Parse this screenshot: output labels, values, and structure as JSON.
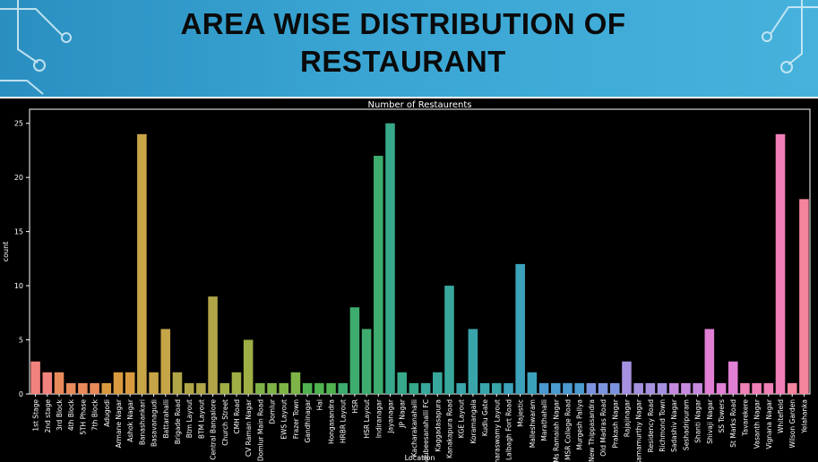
{
  "slide": {
    "title": "AREA WISE DISTRIBUTION OF RESTAURANT"
  },
  "theme": {
    "banner_color": "#3aa5d3",
    "chart_background": "#000000",
    "title_color": "#0a0a0a"
  },
  "chart_data": {
    "type": "bar",
    "title": "Number of Restaurents",
    "xlabel": "Location",
    "ylabel": "count",
    "ylim": [
      0,
      26.3
    ],
    "yticks": [
      0,
      5,
      10,
      15,
      20,
      25
    ],
    "grid": false,
    "categories": [
      "1st Stage",
      "2nd stage",
      "3rd Block",
      "4th Block",
      "5TH Phase",
      "7th Block",
      "Adugodi",
      "Armane Nagar",
      "Ashok Nagar",
      "Banashankari",
      "Basavanagudi",
      "Battarahalli",
      "Brigade Road",
      "Btm Layout",
      "BTM Layout",
      "Central Bangalore",
      "Church Street",
      "CMH Road",
      "CV Raman Nagar",
      "Domlur Main Road",
      "Domlur",
      "EWS Layout",
      "Frazer Town",
      "Gandhinagar",
      "Hal",
      "Hongasandra",
      "HRBR Layout",
      "HSR",
      "HSR Layout",
      "Indiranagar",
      "Jayanagar",
      "JP Nagar",
      "Kacharakanahalli",
      "Kadubeesanahalli FC",
      "Kaggadasapura",
      "Kanakapura Road",
      "KGE Layout",
      "Koramangala",
      "Kudlu Gate",
      "Kumaraswamy Layout",
      "Lalbagh Fort Road",
      "Majestic",
      "Malleshwaram",
      "Marathahalli",
      "Ms Ramaiah Nagar",
      "MSR College Road",
      "Murgesh Pallya",
      "New Thippasandra",
      "Old Madras Road",
      "Prakash Nagar",
      "Rajajinagar",
      "Ramamurthy Nagar",
      "Residency Road",
      "Richmond Town",
      "Sadashiv Nagar",
      "Seshadripuram",
      "Shanti Nagar",
      "Shivaji Nagar",
      "SS Towers",
      "St Marks Road",
      "Tavarekere",
      "Vasanth Nagar",
      "Vignana Nagar",
      "Whitefield",
      "Wilson Garden",
      "Yelahanka"
    ],
    "values": [
      3,
      2,
      2,
      1,
      1,
      1,
      1,
      2,
      2,
      24,
      2,
      6,
      2,
      1,
      1,
      9,
      1,
      2,
      5,
      1,
      1,
      1,
      2,
      1,
      1,
      1,
      1,
      8,
      6,
      22,
      25,
      2,
      1,
      1,
      2,
      10,
      1,
      6,
      1,
      1,
      1,
      12,
      2,
      1,
      1,
      1,
      1,
      1,
      1,
      1,
      3,
      1,
      1,
      1,
      1,
      1,
      1,
      6,
      1,
      3,
      1,
      1,
      1,
      24,
      1,
      18
    ],
    "palette": [
      "#f2827e",
      "#e98a5b",
      "#d99a3f",
      "#c6a448",
      "#b1a548",
      "#9fae45",
      "#7eb347",
      "#4fb24e",
      "#3eac6e",
      "#37a88a",
      "#38a89d",
      "#39a5ab",
      "#3ca1ba",
      "#4a9ad0",
      "#7b93de",
      "#a591df",
      "#c58ae0",
      "#e07fd4",
      "#ef7fb6",
      "#f5849d"
    ]
  }
}
